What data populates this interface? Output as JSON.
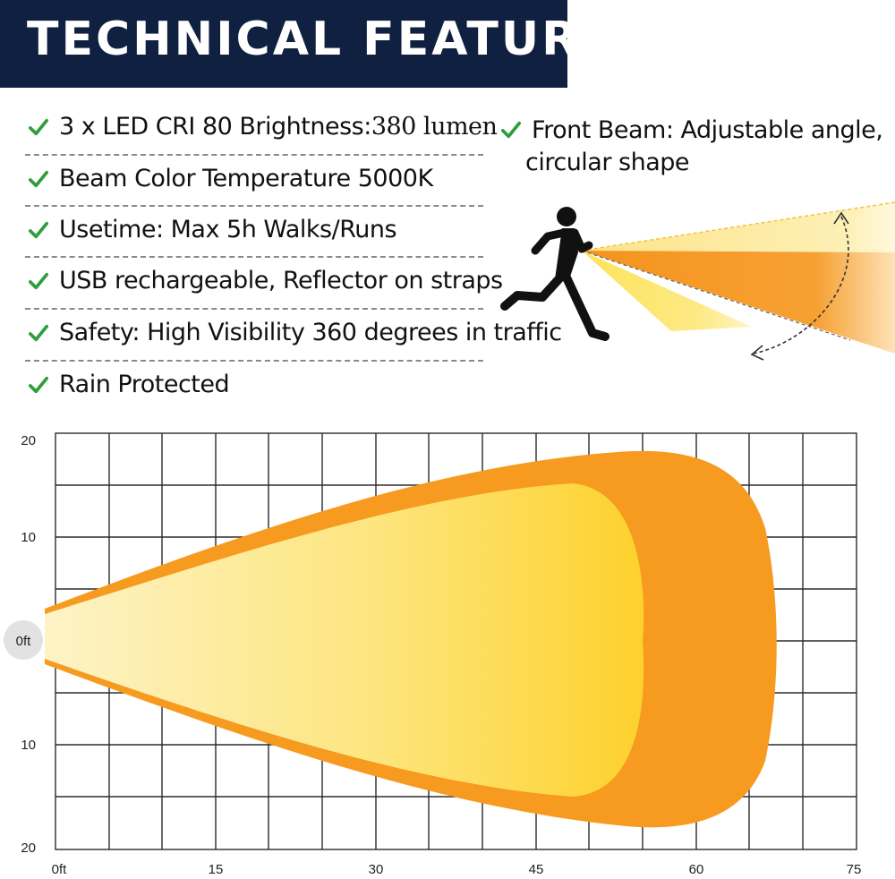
{
  "header": {
    "title": "TECHNICAL FEATURES"
  },
  "features": [
    {
      "label_main": "3 x LED CRI 80 Brightness: ",
      "label_value": "380 lumen"
    },
    {
      "label_main": "Beam Color Temperature 5000K"
    },
    {
      "label_main": "Usetime: Max 5h Walks/Runs"
    },
    {
      "label_main": "USB rechargeable, Reflector on straps"
    },
    {
      "label_main": "Safety: High Visibility 360 degrees in traffic"
    },
    {
      "label_main": "Rain Protected"
    }
  ],
  "front_beam": {
    "line1": "Front Beam: Adjustable angle,",
    "line2": "circular shape"
  },
  "icons": {
    "check": "check-icon",
    "runner": "runner-icon",
    "rotate_arrow": "dashed-rotate-arrow-icon"
  },
  "colors": {
    "banner": "#0f2040",
    "check": "#2e9e3c",
    "beam_outer": "#f79a20",
    "beam_inner_light": "#fdf3c6",
    "beam_inner_dark": "#fdd12c",
    "grid": "#2b2b2b"
  },
  "beam_chart": {
    "x_ticks": [
      "0ft",
      "15",
      "30",
      "45",
      "60",
      "75"
    ],
    "y_ticks_top": [
      "20",
      "10"
    ],
    "y_origin": "0ft",
    "y_ticks_bottom": [
      "10",
      "20"
    ]
  }
}
